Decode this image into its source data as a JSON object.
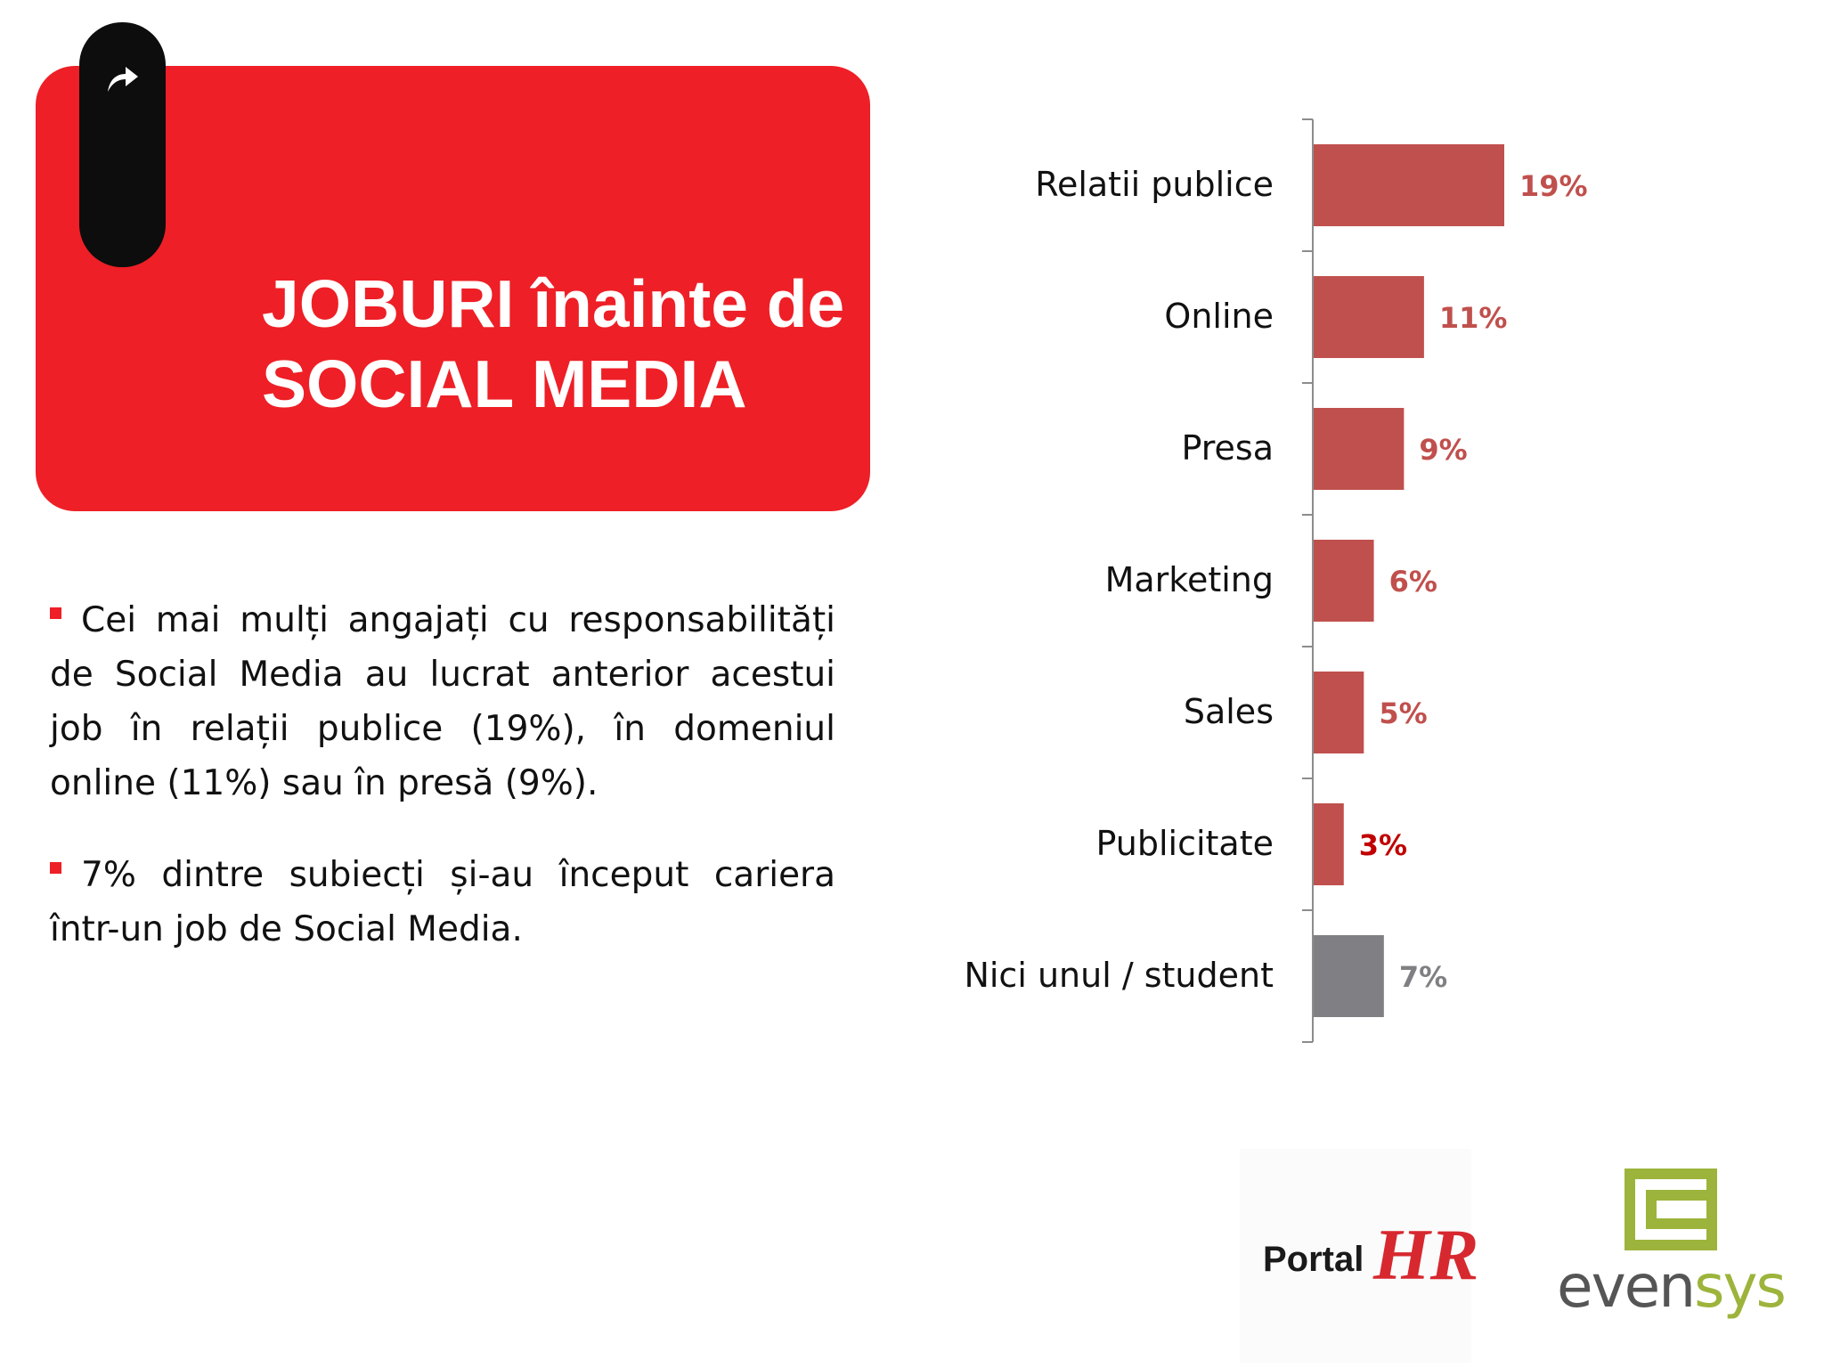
{
  "header": {
    "title_line1": "JOBURI înainte de",
    "title_line2": "SOCIAL MEDIA"
  },
  "bullets": [
    "Cei mai mulți angajați cu responsabilități de Social Media au lucrat anterior acestui job în relații publice (19%), în domeniul online (11%) sau în presă (9%).",
    "7% dintre subiecți și-au început cariera într-un job de Social Media."
  ],
  "chart_data": {
    "type": "bar",
    "orientation": "horizontal",
    "categories": [
      "Relatii publice",
      "Online",
      "Presa",
      "Marketing",
      "Sales",
      "Publicitate",
      "Nici unul / student"
    ],
    "values": [
      19,
      11,
      9,
      6,
      5,
      3,
      7
    ],
    "value_labels": [
      "19%",
      "11%",
      "9%",
      "6%",
      "5%",
      "3%",
      "7%"
    ],
    "bar_colors": [
      "#c0504d",
      "#c0504d",
      "#c0504d",
      "#c0504d",
      "#c0504d",
      "#c0504d",
      "#807f83"
    ],
    "label_colors": [
      "#c0504d",
      "#c0504d",
      "#c0504d",
      "#c0504d",
      "#c0504d",
      "#c00000",
      "#807f83"
    ],
    "xlim": [
      0,
      20
    ],
    "grid": false,
    "legend": "none"
  },
  "logos": {
    "portal_word": "Portal",
    "portal_hr": "HR",
    "evensys_prefix": "even",
    "evensys_suffix": "sys"
  },
  "colors": {
    "title_bg": "#ee1f26",
    "tab_bg": "#0d0d0d",
    "bullet_marker": "#ee1f26"
  },
  "icons": {
    "tab_icon": "share-arrow-icon"
  }
}
